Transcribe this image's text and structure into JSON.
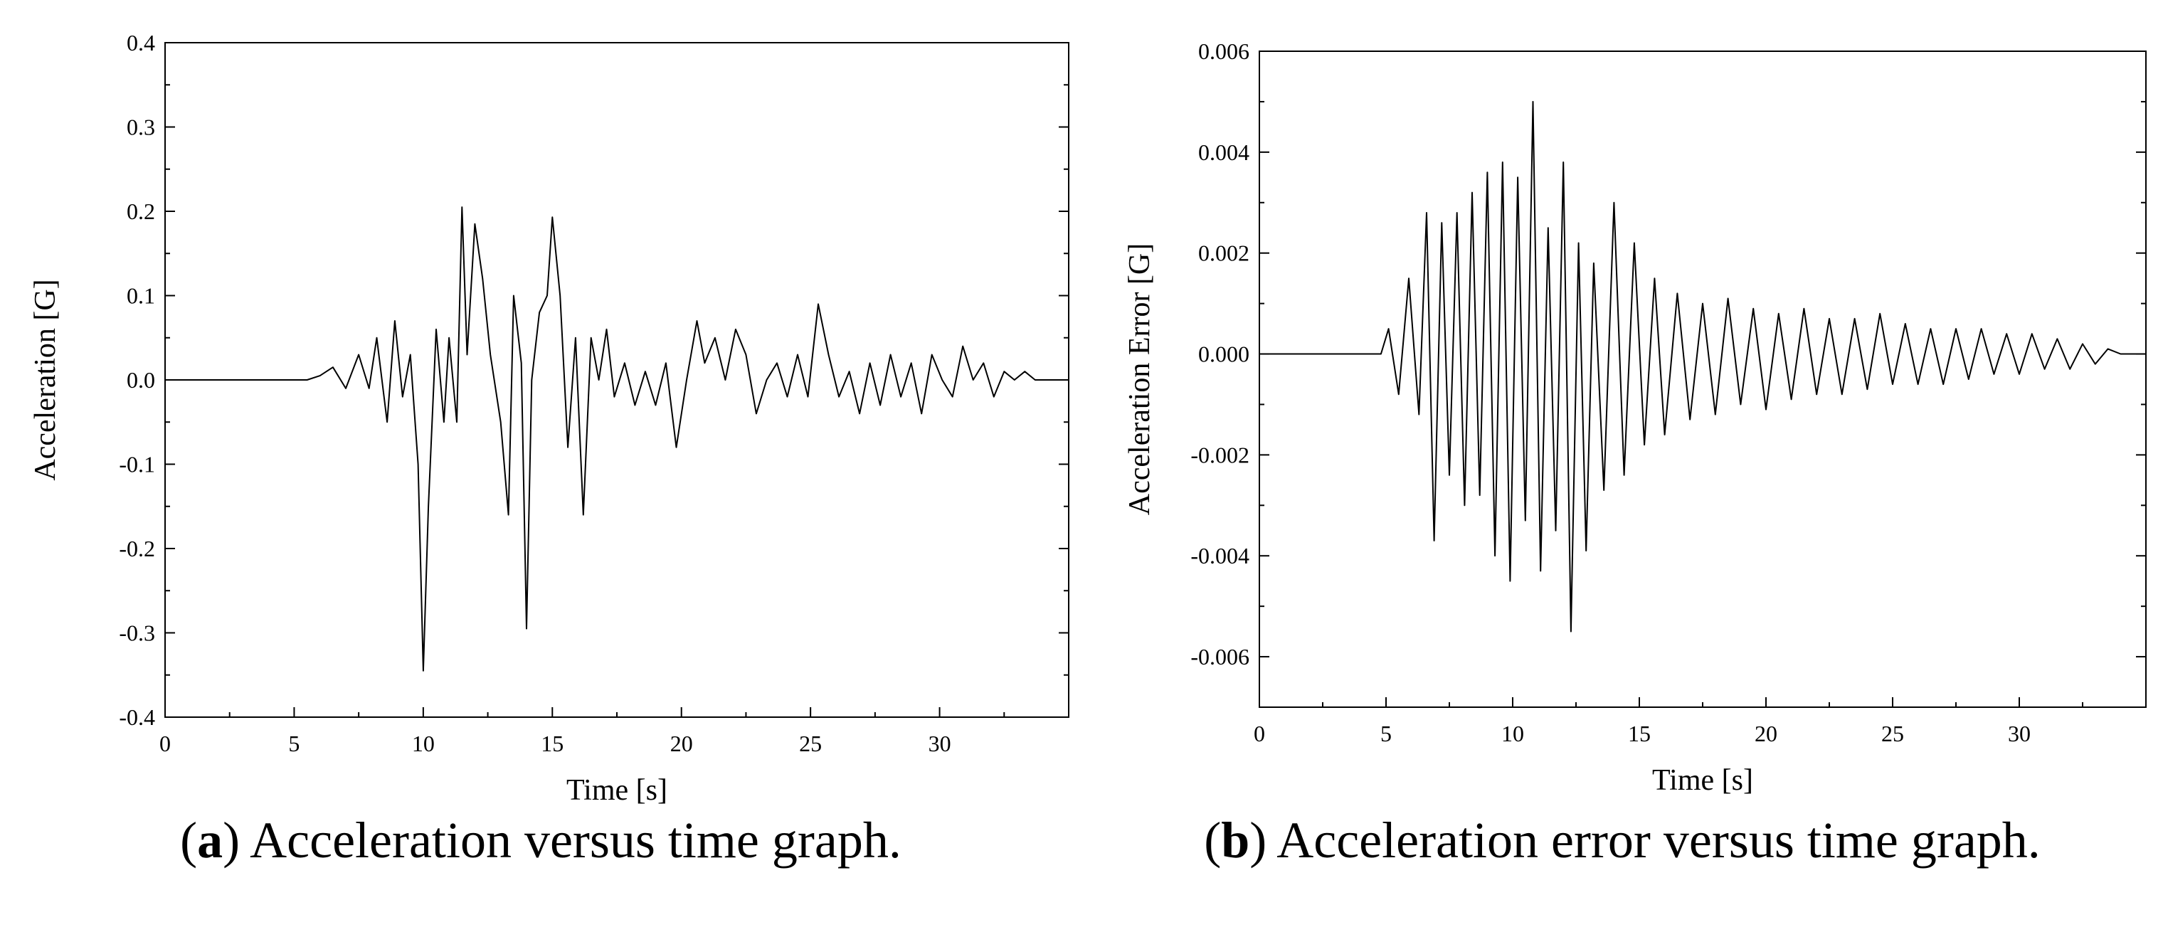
{
  "chart_data": [
    {
      "type": "line",
      "id": "a",
      "xlabel": "Time [s]",
      "ylabel": "Acceleration [G]",
      "xlim": [
        0,
        35
      ],
      "ylim": [
        -0.4,
        0.4
      ],
      "xticks": [
        0,
        5,
        10,
        15,
        20,
        25,
        30
      ],
      "yticks": [
        -0.4,
        -0.3,
        -0.2,
        -0.1,
        0.0,
        0.1,
        0.2,
        0.3,
        0.4
      ],
      "ytick_labels": [
        "-0.4",
        "-0.3",
        "-0.2",
        "-0.1",
        "0.0",
        "0.1",
        "0.2",
        "0.3",
        "0.4"
      ],
      "series": [
        {
          "x": [
            0,
            5.5,
            6.0,
            6.5,
            7.0,
            7.5,
            7.9,
            8.2,
            8.6,
            8.9,
            9.2,
            9.5,
            9.8,
            10.0,
            10.2,
            10.5,
            10.8,
            11.0,
            11.3,
            11.5,
            11.7,
            12.0,
            12.3,
            12.6,
            13.0,
            13.3,
            13.5,
            13.8,
            14.0,
            14.2,
            14.5,
            14.8,
            15.0,
            15.3,
            15.6,
            15.9,
            16.2,
            16.5,
            16.8,
            17.1,
            17.4,
            17.8,
            18.2,
            18.6,
            19.0,
            19.4,
            19.8,
            20.2,
            20.6,
            20.9,
            21.3,
            21.7,
            22.1,
            22.5,
            22.9,
            23.3,
            23.7,
            24.1,
            24.5,
            24.9,
            25.3,
            25.7,
            26.1,
            26.5,
            26.9,
            27.3,
            27.7,
            28.1,
            28.5,
            28.9,
            29.3,
            29.7,
            30.1,
            30.5,
            30.9,
            31.3,
            31.7,
            32.1,
            32.5,
            32.9,
            33.3,
            33.7,
            34.1,
            34.5,
            35.0
          ],
          "y": [
            0.0,
            0.0,
            0.005,
            0.015,
            -0.01,
            0.03,
            -0.01,
            0.05,
            -0.05,
            0.07,
            -0.02,
            0.03,
            -0.1,
            -0.345,
            -0.15,
            0.06,
            -0.05,
            0.05,
            -0.05,
            0.205,
            0.03,
            0.185,
            0.12,
            0.03,
            -0.05,
            -0.16,
            0.1,
            0.02,
            -0.295,
            0.0,
            0.08,
            0.1,
            0.193,
            0.1,
            -0.08,
            0.05,
            -0.16,
            0.05,
            0.0,
            0.06,
            -0.02,
            0.02,
            -0.03,
            0.01,
            -0.03,
            0.02,
            -0.08,
            0.0,
            0.07,
            0.02,
            0.05,
            0.0,
            0.06,
            0.03,
            -0.04,
            0.0,
            0.02,
            -0.02,
            0.03,
            -0.02,
            0.09,
            0.03,
            -0.02,
            0.01,
            -0.04,
            0.02,
            -0.03,
            0.03,
            -0.02,
            0.02,
            -0.04,
            0.03,
            0.0,
            -0.02,
            0.04,
            0.0,
            0.02,
            -0.02,
            0.01,
            0.0,
            0.01,
            0.0,
            0.0,
            0.0,
            0.0
          ]
        }
      ]
    },
    {
      "type": "line",
      "id": "b",
      "xlabel": "Time [s]",
      "ylabel": "Acceleration Error [G]",
      "xlim": [
        0,
        35
      ],
      "ylim": [
        -0.007,
        0.006
      ],
      "xticks": [
        0,
        5,
        10,
        15,
        20,
        25,
        30
      ],
      "yticks": [
        -0.006,
        -0.004,
        -0.002,
        0.0,
        0.002,
        0.004,
        0.006
      ],
      "ytick_labels": [
        "-0.006",
        "-0.004",
        "-0.002",
        "0.000",
        "0.002",
        "0.004",
        "0.006"
      ],
      "series": [
        {
          "x": [
            0,
            4.8,
            5.1,
            5.5,
            5.9,
            6.3,
            6.6,
            6.9,
            7.2,
            7.5,
            7.8,
            8.1,
            8.4,
            8.7,
            9.0,
            9.3,
            9.6,
            9.9,
            10.2,
            10.5,
            10.8,
            11.1,
            11.4,
            11.7,
            12.0,
            12.3,
            12.6,
            12.9,
            13.2,
            13.6,
            14.0,
            14.4,
            14.8,
            15.2,
            15.6,
            16.0,
            16.5,
            17.0,
            17.5,
            18.0,
            18.5,
            19.0,
            19.5,
            20.0,
            20.5,
            21.0,
            21.5,
            22.0,
            22.5,
            23.0,
            23.5,
            24.0,
            24.5,
            25.0,
            25.5,
            26.0,
            26.5,
            27.0,
            27.5,
            28.0,
            28.5,
            29.0,
            29.5,
            30.0,
            30.5,
            31.0,
            31.5,
            32.0,
            32.5,
            33.0,
            33.5,
            34.0,
            35.0
          ],
          "y": [
            0.0,
            0.0,
            0.0005,
            -0.0008,
            0.0015,
            -0.0012,
            0.0028,
            -0.0037,
            0.0026,
            -0.0024,
            0.0028,
            -0.003,
            0.0032,
            -0.0028,
            0.0036,
            -0.004,
            0.0038,
            -0.0045,
            0.0035,
            -0.0033,
            0.005,
            -0.0043,
            0.0025,
            -0.0035,
            0.0038,
            -0.0055,
            0.0022,
            -0.0039,
            0.0018,
            -0.0027,
            0.003,
            -0.0024,
            0.0022,
            -0.0018,
            0.0015,
            -0.0016,
            0.0012,
            -0.0013,
            0.001,
            -0.0012,
            0.0011,
            -0.001,
            0.0009,
            -0.0011,
            0.0008,
            -0.0009,
            0.0009,
            -0.0008,
            0.0007,
            -0.0008,
            0.0007,
            -0.0007,
            0.0008,
            -0.0006,
            0.0006,
            -0.0006,
            0.0005,
            -0.0006,
            0.0005,
            -0.0005,
            0.0005,
            -0.0004,
            0.0004,
            -0.0004,
            0.0004,
            -0.0003,
            0.0003,
            -0.0003,
            0.0002,
            -0.0002,
            0.0001,
            0.0,
            0.0
          ]
        }
      ]
    }
  ],
  "captions": {
    "a_tag": "a",
    "a_text": "Acceleration versus time graph.",
    "b_tag": "b",
    "b_text": "Acceleration error versus time graph."
  }
}
